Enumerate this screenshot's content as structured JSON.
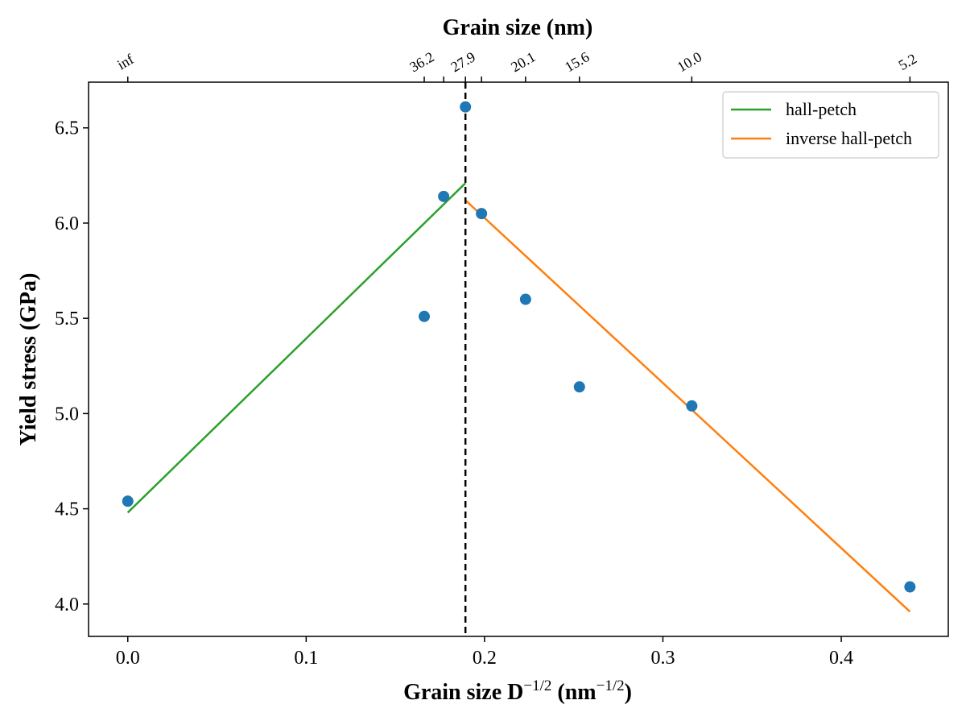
{
  "chart_data": {
    "type": "line",
    "title": "",
    "xlabel": "Grain size D",
    "xlabel_sup1": "−1/2",
    "xlabel_mid": " (nm",
    "xlabel_sup2": "−1/2",
    "xlabel_end": ")",
    "ylabel": "Yield stress (GPa)",
    "top_xlabel": "Grain size (nm)",
    "xlim": [
      -0.022,
      0.46
    ],
    "ylim": [
      3.83,
      6.74
    ],
    "xticks": [
      0.0,
      0.1,
      0.2,
      0.3,
      0.4
    ],
    "xtick_labels": [
      "0.0",
      "0.1",
      "0.2",
      "0.3",
      "0.4"
    ],
    "yticks": [
      4.0,
      4.5,
      5.0,
      5.5,
      6.0,
      6.5
    ],
    "ytick_labels": [
      "4.0",
      "4.5",
      "5.0",
      "5.5",
      "6.0",
      "6.5"
    ],
    "top_ticks": [
      {
        "x": 0.0,
        "label": "inf"
      },
      {
        "x": 0.1662,
        "label": "36.2"
      },
      {
        "x": 0.1771,
        "label": ""
      },
      {
        "x": 0.1893,
        "label": "27.9"
      },
      {
        "x": 0.1983,
        "label": ""
      },
      {
        "x": 0.223,
        "label": "20.1"
      },
      {
        "x": 0.2532,
        "label": "15.6"
      },
      {
        "x": 0.3162,
        "label": "10.0"
      },
      {
        "x": 0.4385,
        "label": "5.2"
      }
    ],
    "points": [
      {
        "x": 0.0,
        "y": 4.54
      },
      {
        "x": 0.1662,
        "y": 5.51
      },
      {
        "x": 0.1771,
        "y": 6.14
      },
      {
        "x": 0.1893,
        "y": 6.61
      },
      {
        "x": 0.1983,
        "y": 6.05
      },
      {
        "x": 0.223,
        "y": 5.6
      },
      {
        "x": 0.2532,
        "y": 5.14
      },
      {
        "x": 0.3162,
        "y": 5.04
      },
      {
        "x": 0.4385,
        "y": 4.09
      }
    ],
    "series": [
      {
        "name": "hall-petch",
        "color": "#2ca02c",
        "x": [
          0.0,
          0.1893
        ],
        "y": [
          4.48,
          6.21
        ]
      },
      {
        "name": "inverse hall-petch",
        "color": "#ff7f0e",
        "x": [
          0.1893,
          0.4385
        ],
        "y": [
          6.12,
          3.96
        ]
      }
    ],
    "vline_x": 0.1893,
    "point_color": "#1f77b4",
    "legend_position": "top-right",
    "grid": false
  }
}
